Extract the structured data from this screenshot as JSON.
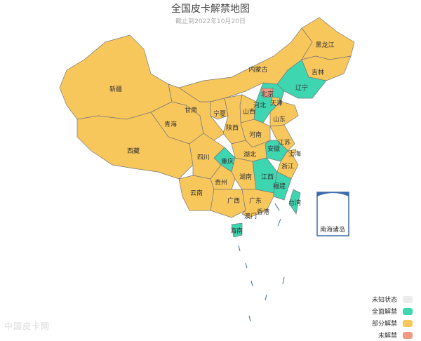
{
  "title": "全国皮卡解禁地图",
  "subtitle": "截止到2022年10月20日",
  "colors": {
    "unknown": "#ebebeb",
    "full": "#3dd6b0",
    "partial": "#f8c75c",
    "none": "#f29a84",
    "inset_border": "#3b6ca8"
  },
  "legend": [
    {
      "label": "未知状态",
      "status": "unknown"
    },
    {
      "label": "全面解禁",
      "status": "full"
    },
    {
      "label": "部分解禁",
      "status": "partial"
    },
    {
      "label": "未解禁",
      "status": "none"
    }
  ],
  "provinces": {
    "xinjiang": {
      "name": "新疆",
      "status": "partial"
    },
    "xizang": {
      "name": "西藏",
      "status": "partial"
    },
    "qinghai": {
      "name": "青海",
      "status": "partial"
    },
    "gansu": {
      "name": "甘肃",
      "status": "partial"
    },
    "neimenggu": {
      "name": "内蒙古",
      "status": "partial"
    },
    "heilongjiang": {
      "name": "黑龙江",
      "status": "partial"
    },
    "jilin": {
      "name": "吉林",
      "status": "partial"
    },
    "liaoning": {
      "name": "辽宁",
      "status": "full"
    },
    "hebei": {
      "name": "河北",
      "status": "full"
    },
    "beijing": {
      "name": "北京",
      "status": "none"
    },
    "tianjin": {
      "name": "天津",
      "status": "partial"
    },
    "shanxi": {
      "name": "山西",
      "status": "partial"
    },
    "shaanxi": {
      "name": "陕西",
      "status": "partial"
    },
    "ningxia": {
      "name": "宁夏",
      "status": "partial"
    },
    "shandong": {
      "name": "山东",
      "status": "partial"
    },
    "henan": {
      "name": "河南",
      "status": "partial"
    },
    "jiangsu": {
      "name": "江苏",
      "status": "partial"
    },
    "anhui": {
      "name": "安徽",
      "status": "full"
    },
    "shanghai": {
      "name": "上海",
      "status": "partial"
    },
    "zhejiang": {
      "name": "浙江",
      "status": "partial"
    },
    "hubei": {
      "name": "湖北",
      "status": "partial"
    },
    "chongqing": {
      "name": "重庆",
      "status": "full"
    },
    "sichuan": {
      "name": "四川",
      "status": "partial"
    },
    "hunan": {
      "name": "湖南",
      "status": "partial"
    },
    "jiangxi": {
      "name": "江西",
      "status": "full"
    },
    "fujian": {
      "name": "福建",
      "status": "full"
    },
    "guizhou": {
      "name": "贵州",
      "status": "partial"
    },
    "yunnan": {
      "name": "云南",
      "status": "partial"
    },
    "guangxi": {
      "name": "广西",
      "status": "partial"
    },
    "guangdong": {
      "name": "广东",
      "status": "partial"
    },
    "hainan": {
      "name": "海南",
      "status": "full"
    },
    "taiwan": {
      "name": "台湾",
      "status": "full"
    },
    "xianggang": {
      "name": "香港",
      "status": "partial"
    },
    "aomen": {
      "name": "澳门",
      "status": "partial"
    }
  },
  "inset_label": "南海诸岛",
  "watermark": "中国皮卡网"
}
